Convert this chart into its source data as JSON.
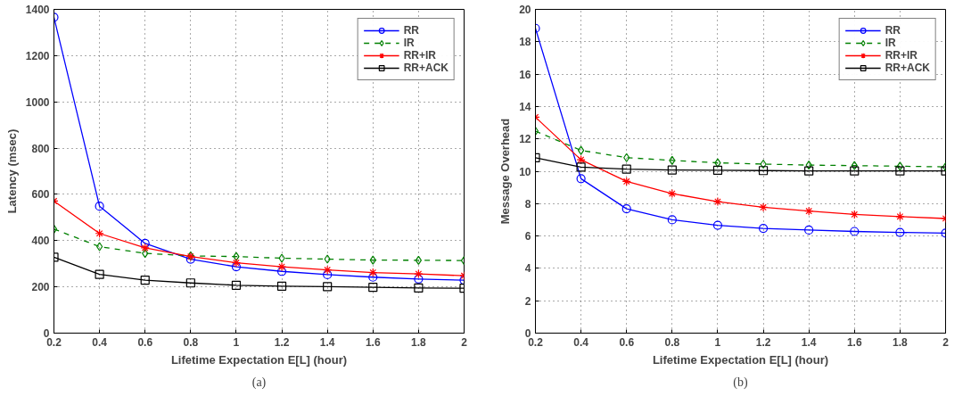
{
  "chart_data": [
    {
      "type": "line",
      "xlabel": "Lifetime Expectation E[L] (hour)",
      "ylabel": "Latency (msec)",
      "annotations": [
        "(a)"
      ],
      "x": [
        0.2,
        0.4,
        0.6,
        0.8,
        1,
        1.2,
        1.4,
        1.6,
        1.8,
        2
      ],
      "xlim": [
        0.2,
        2
      ],
      "xticks": [
        0.2,
        0.4,
        0.6,
        0.8,
        1,
        1.2,
        1.4,
        1.6,
        1.8,
        2
      ],
      "ylim": [
        0,
        1400
      ],
      "yticks": [
        0,
        200,
        400,
        600,
        800,
        1000,
        1200,
        1400
      ],
      "grid": true,
      "legend": "top right",
      "series": [
        {
          "name": "RR",
          "color": "#0000ff",
          "marker": "circle",
          "line_style": "solid",
          "values": [
            1366,
            549,
            388,
            320,
            287,
            267,
            253,
            242,
            234,
            229
          ]
        },
        {
          "name": "IR",
          "color": "#008000",
          "marker": "diamond",
          "line_style": "dashed",
          "values": [
            450,
            374,
            345,
            334,
            331,
            324,
            320,
            316,
            315,
            314
          ]
        },
        {
          "name": "RR+IR",
          "color": "#ff0000",
          "marker": "cross",
          "line_style": "solid",
          "values": [
            571,
            431,
            369,
            331,
            304,
            287,
            273,
            262,
            256,
            248
          ]
        },
        {
          "name": "RR+ACK",
          "color": "#000000",
          "marker": "square",
          "line_style": "solid",
          "values": [
            328,
            254,
            229,
            217,
            207,
            203,
            201,
            198,
            195,
            194
          ]
        }
      ]
    },
    {
      "type": "line",
      "xlabel": "Lifetime Expectation E[L] (hour)",
      "ylabel": "Message Overhead",
      "annotations": [
        "(b)"
      ],
      "x": [
        0.2,
        0.4,
        0.6,
        0.8,
        1,
        1.2,
        1.4,
        1.6,
        1.8,
        2
      ],
      "xlim": [
        0.2,
        2
      ],
      "xticks": [
        0.2,
        0.4,
        0.6,
        0.8,
        1,
        1.2,
        1.4,
        1.6,
        1.8,
        2
      ],
      "ylim": [
        0,
        20
      ],
      "yticks": [
        0,
        2,
        4,
        6,
        8,
        10,
        12,
        14,
        16,
        18,
        20
      ],
      "grid": true,
      "legend": "top right",
      "series": [
        {
          "name": "RR",
          "color": "#0000ff",
          "marker": "circle",
          "line_style": "solid",
          "values": [
            18.83,
            9.54,
            7.68,
            7.0,
            6.66,
            6.47,
            6.37,
            6.28,
            6.22,
            6.18
          ]
        },
        {
          "name": "IR",
          "color": "#008000",
          "marker": "diamond",
          "line_style": "dashed",
          "values": [
            12.48,
            11.29,
            10.84,
            10.67,
            10.52,
            10.44,
            10.38,
            10.35,
            10.31,
            10.27
          ]
        },
        {
          "name": "RR+IR",
          "color": "#ff0000",
          "marker": "cross",
          "line_style": "solid",
          "values": [
            13.34,
            10.71,
            9.37,
            8.62,
            8.12,
            7.77,
            7.54,
            7.33,
            7.2,
            7.08
          ]
        },
        {
          "name": "RR+ACK",
          "color": "#000000",
          "marker": "square",
          "line_style": "solid",
          "values": [
            10.83,
            10.25,
            10.13,
            10.08,
            10.06,
            10.04,
            10.02,
            10.02,
            10.02,
            10.02
          ]
        }
      ]
    }
  ]
}
